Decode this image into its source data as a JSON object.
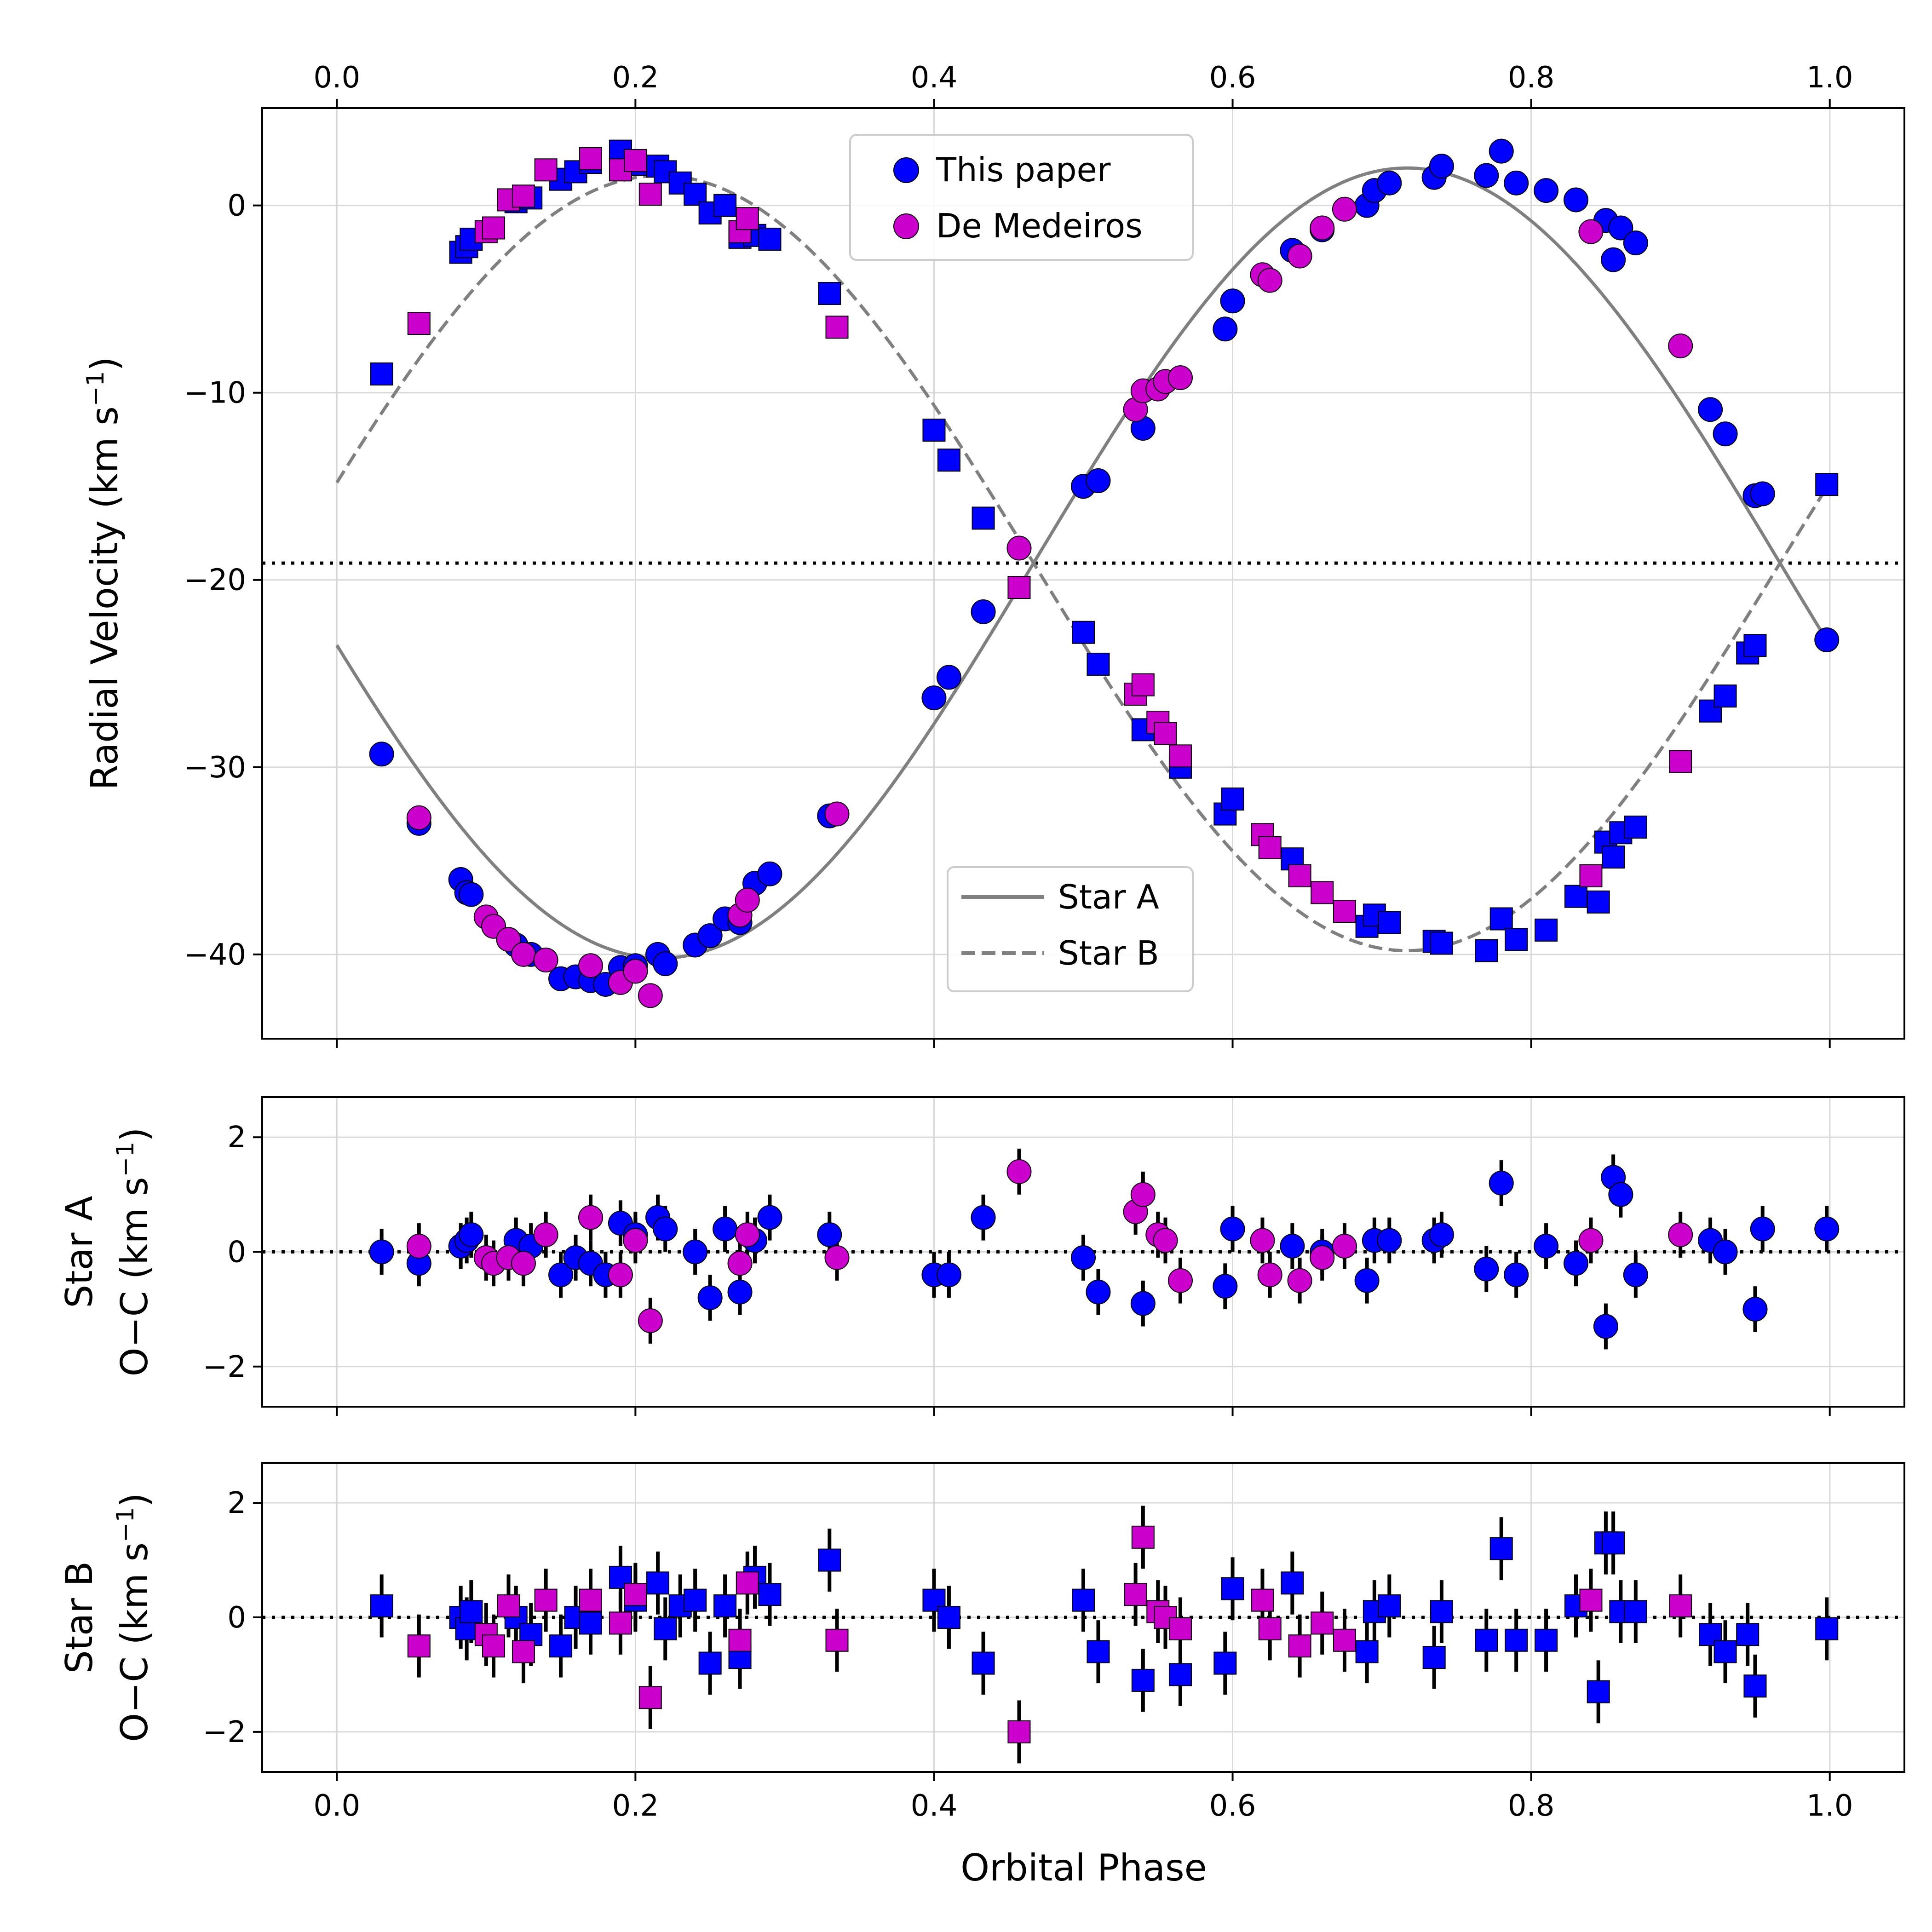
{
  "chart_data": [
    {
      "id": "rv",
      "type": "scatter",
      "ylabel_main": "Radial Velocity (km s",
      "ylabel_sup": "−1",
      "ylabel_end": ")",
      "top_xticks": [
        "0.0",
        "0.2",
        "0.4",
        "0.6",
        "0.8",
        "1.0"
      ],
      "xticks": [
        "0.0",
        "0.2",
        "0.4",
        "0.6",
        "0.8",
        "1.0"
      ],
      "yticks": [
        "0",
        "−10",
        "−20",
        "−30",
        "−40"
      ],
      "xlim": [
        -0.05,
        1.05
      ],
      "ylim": [
        -44.5,
        5.2
      ],
      "systemic_velocity": -19.1,
      "orbit": {
        "gamma": -19.1,
        "K_A": 21.1,
        "K_B": 20.7,
        "phase_offset": 0.4667
      },
      "legend_points": [
        {
          "label": "This paper",
          "color": "#0000ff"
        },
        {
          "label": "De Medeiros",
          "color": "#cc00cc"
        }
      ],
      "legend_lines": [
        {
          "label": "Star A",
          "style": "solid"
        },
        {
          "label": "Star B",
          "style": "dashed"
        }
      ],
      "series": [
        {
          "name": "Star A model",
          "marker": "line",
          "color": "#808080",
          "dash": "solid"
        },
        {
          "name": "Star B model",
          "marker": "line",
          "color": "#808080",
          "dash": "dashed"
        },
        {
          "name": "Star A – This paper",
          "marker": "circle",
          "color": "#0000ff",
          "x": [
            0.03,
            0.055,
            0.083,
            0.087,
            0.09,
            0.12,
            0.13,
            0.15,
            0.16,
            0.17,
            0.18,
            0.19,
            0.2,
            0.215,
            0.22,
            0.24,
            0.25,
            0.26,
            0.27,
            0.28,
            0.29,
            0.33,
            0.4,
            0.41,
            0.433,
            0.5,
            0.51,
            0.54,
            0.595,
            0.6,
            0.64,
            0.66,
            0.69,
            0.695,
            0.705,
            0.735,
            0.74,
            0.77,
            0.78,
            0.79,
            0.81,
            0.83,
            0.85,
            0.855,
            0.86,
            0.87,
            0.92,
            0.93,
            0.95,
            0.955,
            0.998
          ],
          "y": [
            -29.3,
            -33.0,
            -36.0,
            -36.7,
            -36.8,
            -39.5,
            -40.0,
            -41.3,
            -41.2,
            -41.4,
            -41.6,
            -40.7,
            -40.6,
            -40.0,
            -40.5,
            -39.5,
            -39.0,
            -38.1,
            -38.3,
            -36.2,
            -35.7,
            -32.6,
            -26.3,
            -25.2,
            -21.7,
            -15.0,
            -14.7,
            -11.9,
            -6.6,
            -5.1,
            -2.4,
            -1.3,
            0.0,
            0.8,
            1.2,
            1.5,
            2.1,
            1.6,
            2.9,
            1.2,
            0.8,
            0.3,
            -0.8,
            -2.9,
            -1.2,
            -2.0,
            -10.9,
            -12.2,
            -15.5,
            -15.4,
            -23.2
          ]
        },
        {
          "name": "Star A – De Medeiros",
          "marker": "circle",
          "color": "#cc00cc",
          "x": [
            0.055,
            0.1,
            0.105,
            0.115,
            0.125,
            0.14,
            0.17,
            0.19,
            0.2,
            0.21,
            0.27,
            0.275,
            0.335,
            0.457,
            0.535,
            0.54,
            0.55,
            0.555,
            0.565,
            0.62,
            0.625,
            0.645,
            0.66,
            0.675,
            0.84,
            0.9
          ],
          "y": [
            -32.7,
            -38.0,
            -38.5,
            -39.2,
            -40.0,
            -40.3,
            -40.6,
            -41.5,
            -40.9,
            -42.2,
            -37.9,
            -37.1,
            -32.5,
            -18.3,
            -10.9,
            -9.9,
            -9.8,
            -9.4,
            -9.2,
            -3.7,
            -4.0,
            -2.7,
            -1.2,
            -0.2,
            -1.4,
            -7.5
          ]
        },
        {
          "name": "Star B – This paper",
          "marker": "square",
          "color": "#0000ff",
          "x": [
            0.03,
            0.083,
            0.087,
            0.09,
            0.12,
            0.13,
            0.15,
            0.16,
            0.17,
            0.19,
            0.2,
            0.215,
            0.22,
            0.23,
            0.24,
            0.25,
            0.26,
            0.27,
            0.28,
            0.29,
            0.33,
            0.4,
            0.41,
            0.433,
            0.5,
            0.51,
            0.54,
            0.565,
            0.595,
            0.6,
            0.64,
            0.69,
            0.695,
            0.705,
            0.735,
            0.74,
            0.77,
            0.78,
            0.79,
            0.81,
            0.83,
            0.845,
            0.85,
            0.855,
            0.86,
            0.87,
            0.92,
            0.93,
            0.945,
            0.95,
            0.998
          ],
          "y": [
            -9.0,
            -2.5,
            -2.2,
            -1.8,
            0.2,
            0.4,
            1.4,
            1.8,
            2.3,
            2.9,
            2.2,
            2.1,
            1.8,
            1.2,
            0.6,
            -0.4,
            0.0,
            -1.7,
            -1.6,
            -1.8,
            -4.7,
            -12.0,
            -13.6,
            -16.7,
            -22.8,
            -24.5,
            -28.0,
            -30.0,
            -32.5,
            -31.7,
            -34.9,
            -38.5,
            -37.9,
            -38.3,
            -39.3,
            -39.4,
            -39.8,
            -38.1,
            -39.2,
            -38.7,
            -36.9,
            -37.2,
            -34.0,
            -34.8,
            -33.5,
            -33.2,
            -27.0,
            -26.2,
            -23.9,
            -23.5,
            -14.9
          ]
        },
        {
          "name": "Star B – De Medeiros",
          "marker": "square",
          "color": "#cc00cc",
          "x": [
            0.055,
            0.1,
            0.105,
            0.115,
            0.125,
            0.14,
            0.17,
            0.19,
            0.2,
            0.21,
            0.27,
            0.275,
            0.335,
            0.457,
            0.535,
            0.54,
            0.55,
            0.555,
            0.565,
            0.62,
            0.625,
            0.645,
            0.66,
            0.675,
            0.84,
            0.9
          ],
          "y": [
            -6.3,
            -1.4,
            -1.2,
            0.3,
            0.5,
            1.9,
            2.5,
            1.9,
            2.4,
            0.6,
            -1.4,
            -0.7,
            -6.5,
            -20.4,
            -26.1,
            -25.6,
            -27.6,
            -28.2,
            -29.4,
            -33.6,
            -34.3,
            -35.8,
            -36.7,
            -37.7,
            -35.8,
            -29.7
          ]
        }
      ]
    },
    {
      "id": "ocA",
      "type": "scatter",
      "ylabel_line1": "Star A",
      "ylabel_line2_main": "O−C (km s",
      "ylabel_sup": "−1",
      "ylabel_end": ")",
      "yticks": [
        "2",
        "0",
        "−2"
      ],
      "xlim": [
        -0.05,
        1.05
      ],
      "ylim": [
        -2.7,
        2.7
      ],
      "error_bar": 0.4,
      "series": [
        {
          "name": "Star A O−C – This paper",
          "marker": "circle",
          "color": "#0000ff",
          "x": [
            0.03,
            0.055,
            0.083,
            0.087,
            0.09,
            0.12,
            0.13,
            0.15,
            0.16,
            0.17,
            0.18,
            0.19,
            0.2,
            0.215,
            0.22,
            0.24,
            0.25,
            0.26,
            0.27,
            0.28,
            0.29,
            0.33,
            0.4,
            0.41,
            0.433,
            0.5,
            0.51,
            0.54,
            0.595,
            0.6,
            0.64,
            0.66,
            0.69,
            0.695,
            0.705,
            0.735,
            0.74,
            0.77,
            0.78,
            0.79,
            0.81,
            0.83,
            0.85,
            0.855,
            0.86,
            0.87,
            0.92,
            0.93,
            0.95,
            0.955,
            0.998
          ],
          "y": [
            0.0,
            -0.2,
            0.1,
            0.2,
            0.3,
            0.2,
            0.1,
            -0.4,
            -0.1,
            -0.2,
            -0.4,
            0.5,
            0.3,
            0.6,
            0.4,
            0.0,
            -0.8,
            0.4,
            -0.7,
            0.2,
            0.6,
            0.3,
            -0.4,
            -0.4,
            0.6,
            -0.1,
            -0.7,
            -0.9,
            -0.6,
            0.4,
            0.1,
            0.0,
            -0.5,
            0.2,
            0.2,
            0.2,
            0.3,
            -0.3,
            1.2,
            -0.4,
            0.1,
            -0.2,
            -1.3,
            1.3,
            1.0,
            -0.4,
            0.2,
            0.0,
            -1.0,
            0.4,
            0.4
          ]
        },
        {
          "name": "Star A O−C – De Medeiros",
          "marker": "circle",
          "color": "#cc00cc",
          "x": [
            0.055,
            0.1,
            0.105,
            0.115,
            0.125,
            0.14,
            0.17,
            0.19,
            0.2,
            0.21,
            0.27,
            0.275,
            0.335,
            0.457,
            0.535,
            0.54,
            0.55,
            0.555,
            0.565,
            0.62,
            0.625,
            0.645,
            0.66,
            0.675,
            0.84,
            0.9
          ],
          "y": [
            0.1,
            -0.1,
            -0.2,
            -0.1,
            -0.2,
            0.3,
            0.6,
            -0.4,
            0.2,
            -1.2,
            -0.2,
            0.3,
            -0.1,
            1.4,
            0.7,
            1.0,
            0.3,
            0.2,
            -0.5,
            0.2,
            -0.4,
            -0.5,
            -0.1,
            0.1,
            0.2,
            0.3
          ]
        }
      ]
    },
    {
      "id": "ocB",
      "type": "scatter",
      "ylabel_line1": "Star B",
      "ylabel_line2_main": "O−C (km s",
      "ylabel_sup": "−1",
      "ylabel_end": ")",
      "yticks": [
        "2",
        "0",
        "−2"
      ],
      "xticks": [
        "0.0",
        "0.2",
        "0.4",
        "0.6",
        "0.8",
        "1.0"
      ],
      "xlabel": "Orbital Phase",
      "xlim": [
        -0.05,
        1.05
      ],
      "ylim": [
        -2.7,
        2.7
      ],
      "error_bar": 0.55,
      "series": [
        {
          "name": "Star B O−C – This paper",
          "marker": "square",
          "color": "#0000ff",
          "x": [
            0.03,
            0.083,
            0.087,
            0.09,
            0.12,
            0.13,
            0.15,
            0.16,
            0.17,
            0.19,
            0.2,
            0.215,
            0.22,
            0.23,
            0.24,
            0.25,
            0.26,
            0.27,
            0.28,
            0.29,
            0.33,
            0.4,
            0.41,
            0.433,
            0.5,
            0.51,
            0.54,
            0.565,
            0.595,
            0.6,
            0.64,
            0.69,
            0.695,
            0.705,
            0.735,
            0.74,
            0.77,
            0.78,
            0.79,
            0.81,
            0.83,
            0.845,
            0.85,
            0.855,
            0.86,
            0.87,
            0.92,
            0.93,
            0.945,
            0.95,
            0.998
          ],
          "y": [
            0.2,
            0.0,
            -0.2,
            0.1,
            0.0,
            -0.3,
            -0.5,
            0.0,
            -0.1,
            0.7,
            0.3,
            0.6,
            -0.2,
            0.2,
            0.3,
            -0.8,
            0.2,
            -0.7,
            0.7,
            0.4,
            1.0,
            0.3,
            0.0,
            -0.8,
            0.3,
            -0.6,
            -1.1,
            -1.0,
            -0.8,
            0.5,
            0.6,
            -0.6,
            0.1,
            0.2,
            -0.7,
            0.1,
            -0.4,
            1.2,
            -0.4,
            -0.4,
            0.2,
            -1.3,
            1.3,
            1.3,
            0.1,
            0.1,
            -0.3,
            -0.6,
            -0.3,
            -1.2,
            -0.2
          ]
        },
        {
          "name": "Star B O−C – De Medeiros",
          "marker": "square",
          "color": "#cc00cc",
          "x": [
            0.055,
            0.1,
            0.105,
            0.115,
            0.125,
            0.14,
            0.17,
            0.19,
            0.2,
            0.21,
            0.27,
            0.275,
            0.335,
            0.457,
            0.535,
            0.54,
            0.55,
            0.555,
            0.565,
            0.62,
            0.625,
            0.645,
            0.66,
            0.675,
            0.84,
            0.9
          ],
          "y": [
            -0.5,
            -0.3,
            -0.5,
            0.2,
            -0.6,
            0.3,
            0.3,
            -0.1,
            0.4,
            -1.4,
            -0.4,
            0.6,
            -0.4,
            -2.0,
            0.4,
            1.4,
            0.1,
            0.0,
            -0.2,
            0.3,
            -0.2,
            -0.5,
            -0.1,
            -0.4,
            0.3,
            0.2
          ]
        }
      ]
    }
  ]
}
